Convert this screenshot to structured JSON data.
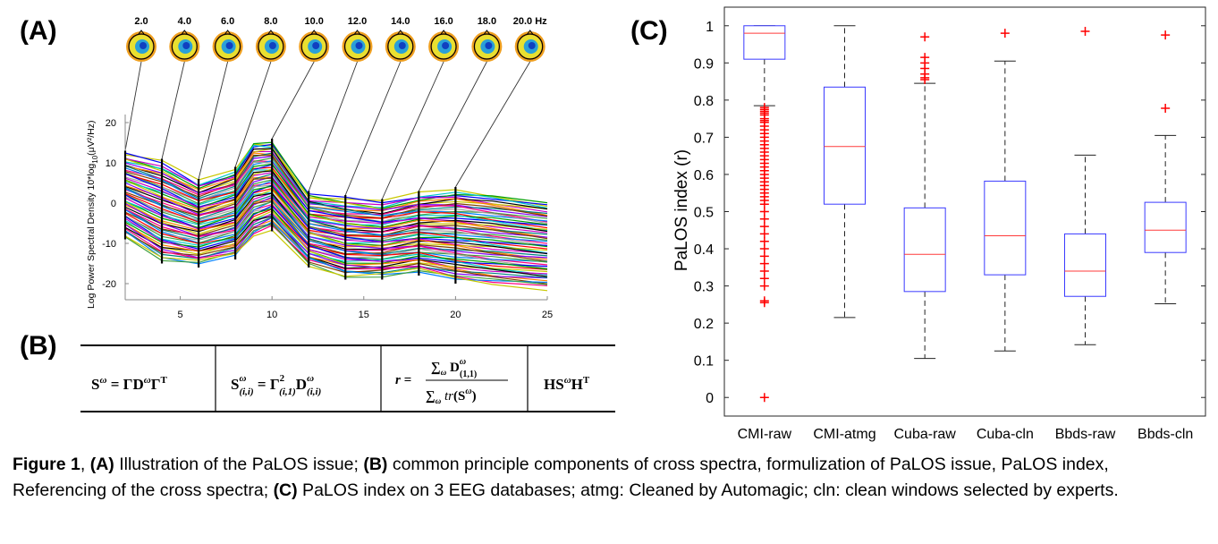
{
  "panels": {
    "a": "(A)",
    "b": "(B)",
    "c": "(C)"
  },
  "panel_a": {
    "freq_labels": [
      "2.0",
      "4.0",
      "6.0",
      "8.0",
      "10.0",
      "12.0",
      "14.0",
      "16.0",
      "18.0",
      "20.0 Hz"
    ],
    "ylabel_text": "Log Power Spectral Density 10*log",
    "ylabel_sub": "10",
    "ylabel_unit": "(μV²/Hz)",
    "yticks": [
      "20",
      "10",
      "0",
      "-10",
      "-20"
    ],
    "xticks": [
      "5",
      "10",
      "15",
      "20",
      "25"
    ]
  },
  "panel_b": {
    "equations": [
      "Sω = ΓDωΓᵀ",
      "Sω(i,i) = Γ²(i,1)Dω(i,i)",
      "r = Σω Dω(1,1) / Σω tr(Sω)",
      "HSωHᵀ"
    ]
  },
  "chart_data": [
    {
      "type": "line",
      "panel": "A",
      "xlabel": "",
      "ylabel": "Log Power Spectral Density 10*log10(μV²/Hz)",
      "xlim": [
        2,
        25
      ],
      "ylim": [
        -24,
        22
      ],
      "xticks": [
        5,
        10,
        15,
        20,
        25
      ],
      "yticks": [
        -20,
        -10,
        0,
        10,
        20
      ],
      "x": [
        2,
        4,
        6,
        8,
        9,
        10,
        12,
        14,
        16,
        18,
        20,
        22,
        25
      ],
      "series_note_count": 60,
      "envelope": {
        "max": [
          12,
          10,
          5,
          8,
          15,
          15,
          2,
          1,
          0,
          2,
          3,
          2,
          0
        ],
        "min": [
          -8,
          -14,
          -15,
          -13,
          -8,
          -6,
          -15,
          -18,
          -18,
          -17,
          -19,
          -20,
          -21
        ]
      },
      "markers_x": [
        2,
        4,
        6,
        8,
        10,
        12,
        14,
        16,
        18,
        20
      ]
    },
    {
      "type": "box",
      "panel": "C",
      "ylabel": "PaLOS index (r)",
      "ylim": [
        -0.05,
        1.05
      ],
      "yticks": [
        0,
        0.1,
        0.2,
        0.3,
        0.4,
        0.5,
        0.6,
        0.7,
        0.8,
        0.9,
        1
      ],
      "categories": [
        "CMI-raw",
        "CMI-atmg",
        "Cuba-raw",
        "Cuba-cln",
        "Bbds-raw",
        "Bbds-cln"
      ],
      "boxes": [
        {
          "q1": 0.91,
          "median": 0.98,
          "q3": 1.0,
          "whisker_low": 0.785,
          "whisker_high": 1.0,
          "outliers": [
            0.78,
            0.775,
            0.77,
            0.765,
            0.76,
            0.75,
            0.745,
            0.74,
            0.73,
            0.72,
            0.71,
            0.7,
            0.69,
            0.68,
            0.67,
            0.66,
            0.65,
            0.64,
            0.63,
            0.62,
            0.61,
            0.6,
            0.59,
            0.58,
            0.57,
            0.56,
            0.55,
            0.54,
            0.53,
            0.52,
            0.5,
            0.48,
            0.46,
            0.44,
            0.42,
            0.4,
            0.38,
            0.36,
            0.34,
            0.32,
            0.3,
            0.26,
            0.255,
            0.0
          ]
        },
        {
          "q1": 0.52,
          "median": 0.675,
          "q3": 0.835,
          "whisker_low": 0.215,
          "whisker_high": 1.0,
          "outliers": []
        },
        {
          "q1": 0.285,
          "median": 0.385,
          "q3": 0.51,
          "whisker_low": 0.105,
          "whisker_high": 0.845,
          "outliers": [
            0.97,
            0.915,
            0.9,
            0.885,
            0.87,
            0.86,
            0.855
          ]
        },
        {
          "q1": 0.33,
          "median": 0.435,
          "q3": 0.582,
          "whisker_low": 0.125,
          "whisker_high": 0.905,
          "outliers": [
            0.98
          ]
        },
        {
          "q1": 0.272,
          "median": 0.34,
          "q3": 0.44,
          "whisker_low": 0.142,
          "whisker_high": 0.652,
          "outliers": [
            0.985
          ]
        },
        {
          "q1": 0.39,
          "median": 0.45,
          "q3": 0.525,
          "whisker_low": 0.252,
          "whisker_high": 0.705,
          "outliers": [
            0.975,
            0.778
          ]
        }
      ],
      "colors": {
        "box": "#3a3aff",
        "median": "#ff3b3b",
        "outlier": "#ff0000",
        "whisker": "#222222"
      }
    }
  ],
  "caption": {
    "figure": "Figure 1",
    "a_label": "(A)",
    "a_text": " Illustration of the PaLOS issue; ",
    "b_label": "(B)",
    "b_text": " common principle components of cross spectra, formulization of PaLOS issue, PaLOS index, Referencing of the cross spectra; ",
    "c_label": "(C)",
    "c_text": " PaLOS index on 3 EEG databases; atmg: Cleaned by Automagic; cln: clean windows selected by experts."
  }
}
